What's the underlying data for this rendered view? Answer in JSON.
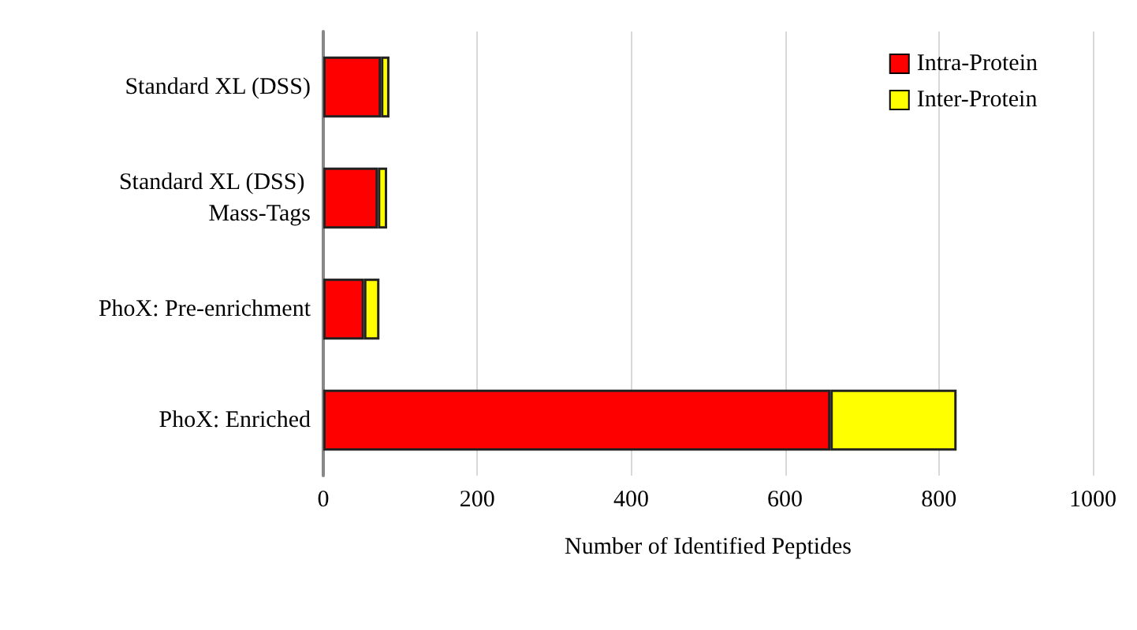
{
  "chart_data": {
    "type": "bar",
    "orientation": "horizontal",
    "stacked": true,
    "xlabel": "Number of Identified Peptides",
    "categories": [
      "Standard XL (DSS)",
      "Standard XL (DSS) Mass-Tags",
      "PhoX: Pre-enrichment",
      "PhoX: Enriched"
    ],
    "series": [
      {
        "name": "Intra-Protein",
        "color": "#ff0000",
        "values": [
          75,
          71,
          53,
          659
        ]
      },
      {
        "name": "Inter-Protein",
        "color": "#ffff00",
        "values": [
          11,
          12,
          20,
          164
        ]
      }
    ],
    "xlim": [
      0,
      1000
    ],
    "xticks": [
      0,
      200,
      400,
      600,
      800,
      1000
    ],
    "grid": "x",
    "legend": "top right"
  }
}
